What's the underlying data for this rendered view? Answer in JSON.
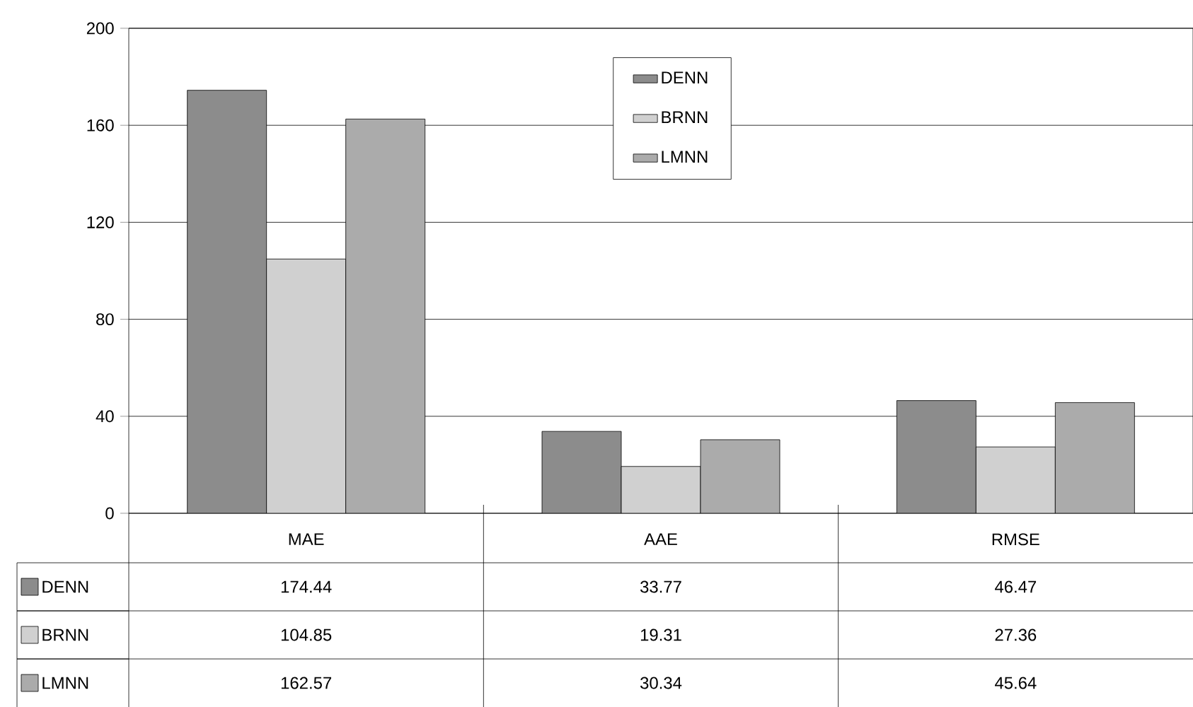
{
  "chart_data": {
    "type": "bar",
    "categories": [
      "MAE",
      "AAE",
      "RMSE"
    ],
    "series": [
      {
        "name": "DENN",
        "color": "#8c8c8c",
        "values": [
          174.44,
          33.77,
          46.47
        ],
        "value_labels": [
          "174.44",
          "33.77",
          "46.47"
        ]
      },
      {
        "name": "BRNN",
        "color": "#d0d0d0",
        "values": [
          104.85,
          19.31,
          27.36
        ],
        "value_labels": [
          "104.85",
          "19.31",
          "27.36"
        ]
      },
      {
        "name": "LMNN",
        "color": "#ababab",
        "values": [
          162.57,
          30.34,
          45.64
        ],
        "value_labels": [
          "162.57",
          "30.34",
          "45.64"
        ]
      }
    ],
    "ylim": [
      0,
      200
    ],
    "yticks": [
      0,
      40,
      80,
      120,
      160,
      200
    ],
    "grid": "y",
    "legend": "top"
  }
}
